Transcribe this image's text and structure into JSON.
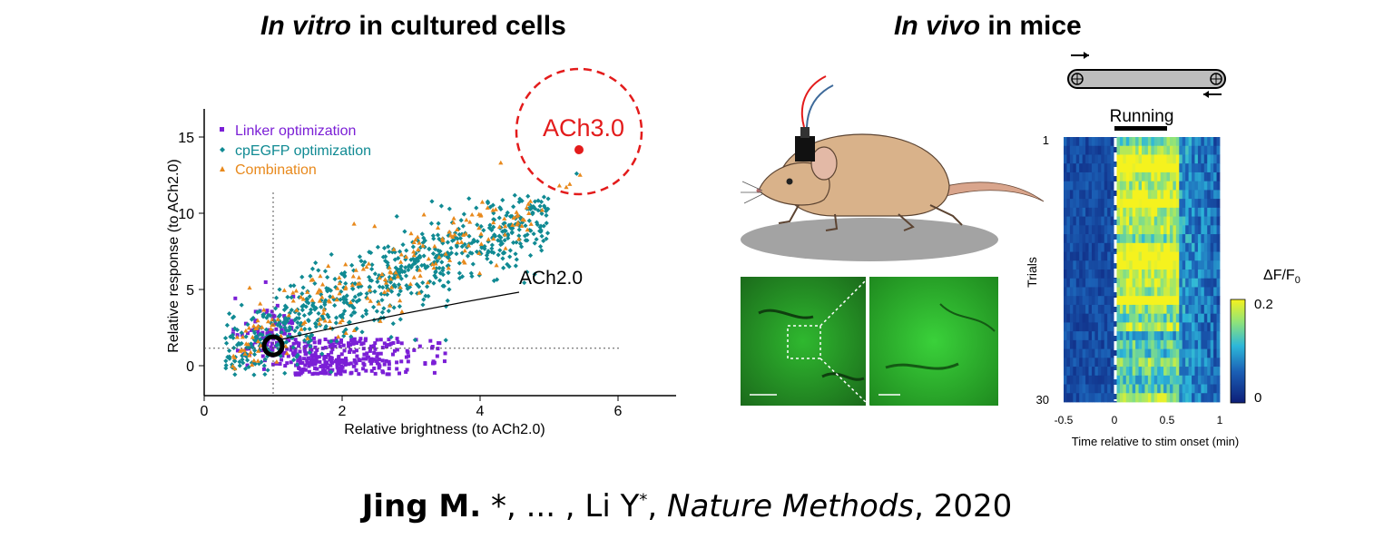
{
  "left_title": {
    "italic": "In vitro",
    "rest": " in cultured cells"
  },
  "right_title": {
    "italic": "In vivo",
    "rest": " in mice"
  },
  "chart_data": {
    "type": "scatter",
    "xlabel": "Relative brightness (to ACh2.0)",
    "ylabel": "Relative response (to ACh2.0)",
    "xlim": [
      0,
      6.8
    ],
    "ylim": [
      -2.5,
      16
    ],
    "xticks": [
      "0",
      "2",
      "4",
      "6"
    ],
    "yticks": [
      "0",
      "5",
      "10",
      "15"
    ],
    "legend": "top-left",
    "reference_lines": {
      "x": 1,
      "y": 1.5
    },
    "series": [
      {
        "name": "Linker optimization",
        "color": "#7B1FD6",
        "marker": "square"
      },
      {
        "name": "cpEGFP optimization",
        "color": "#108A93",
        "marker": "diamond"
      },
      {
        "name": "Combination",
        "color": "#E8891C",
        "marker": "triangle"
      }
    ],
    "annotations": [
      {
        "text": "ACh2.0",
        "x": 1,
        "y": 1.5
      },
      {
        "text": "ACh3.0",
        "x": 5.45,
        "y": 18
      }
    ]
  },
  "heatmap": {
    "title": "Running",
    "ylabel": "Trials",
    "xlabel": "Time relative to stim onset (min)",
    "xticks": [
      "-0.5",
      "0",
      "0.5",
      "1"
    ],
    "yticks": [
      "1",
      "30"
    ],
    "colorbar_label": "ΔF/F",
    "colorbar_sub": "0",
    "colorbar_ticks": [
      "0.2",
      "0"
    ]
  },
  "citation": {
    "author1": "Jing M.",
    "mid": " *, ... , Li Y",
    "star": "*",
    "comma": ", ",
    "journal": "Nature Methods",
    "year": ", 2020"
  }
}
